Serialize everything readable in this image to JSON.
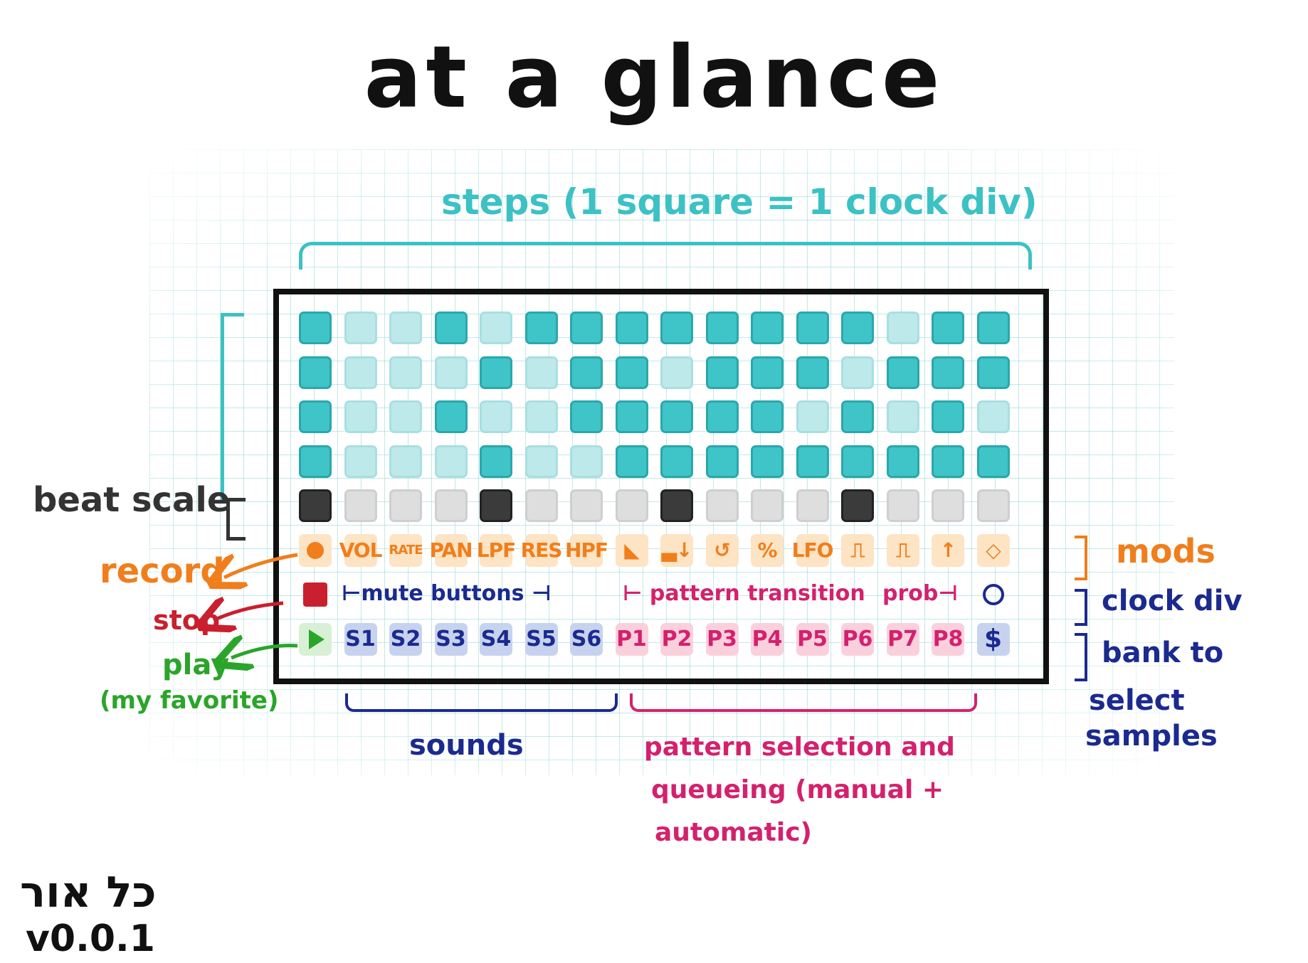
{
  "title": "at a glance",
  "steps_label": "steps (1 square = 1 clock div)",
  "labels": {
    "beat_scale": "beat scale",
    "record": "record",
    "stop": "stop",
    "play": "play",
    "my_favorite": "(my favorite)",
    "mods": "mods",
    "clock_div": "clock div",
    "bank": "bank to",
    "select_samples_1": "select",
    "select_samples_2": "samples",
    "sounds": "sounds",
    "pattern_sel_1": "pattern selection and",
    "pattern_sel_2": "queueing (manual +",
    "pattern_sel_3": "automatic)",
    "hebrew": "כל אור",
    "version": "v0.0.1"
  },
  "row7": {
    "mute": "⊢mute buttons ⊣",
    "pattern": "⊢ pattern transition",
    "prob": "prob⊣"
  },
  "mods": [
    "VOL",
    "RATE",
    "PAN",
    "LPF",
    "RES",
    "HPF",
    "◣",
    "▃↓",
    "↺",
    "%",
    "LFO",
    "⎍",
    "⎍",
    "↑",
    "◇"
  ],
  "sounds": [
    "S1",
    "S2",
    "S3",
    "S4",
    "S5",
    "S6"
  ],
  "patterns": [
    "P1",
    "P2",
    "P3",
    "P4",
    "P5",
    "P6",
    "P7",
    "P8"
  ],
  "bank_symbol": "$",
  "steps": [
    [
      1,
      0,
      0,
      1,
      0,
      1,
      1,
      1,
      1,
      1,
      1,
      1,
      1,
      0,
      1,
      1
    ],
    [
      1,
      0,
      0,
      0,
      1,
      0,
      1,
      1,
      0,
      1,
      1,
      1,
      0,
      1,
      1,
      1
    ],
    [
      1,
      0,
      0,
      1,
      0,
      0,
      1,
      1,
      1,
      1,
      1,
      0,
      1,
      0,
      1,
      0
    ],
    [
      1,
      0,
      0,
      0,
      1,
      0,
      0,
      1,
      1,
      1,
      1,
      1,
      1,
      1,
      1,
      1
    ]
  ],
  "beat_scale": [
    1,
    0,
    0,
    0,
    1,
    0,
    0,
    0,
    1,
    0,
    0,
    0,
    1,
    0,
    0,
    0
  ],
  "colors": {
    "steps": "#3cc1c4",
    "beat": "#333333",
    "mods": "#f07e1c",
    "sounds": "#1b2a8f",
    "patterns": "#d4216d",
    "record": "#f07e1c",
    "stop": "#c8202f",
    "play": "#2aa52a"
  }
}
